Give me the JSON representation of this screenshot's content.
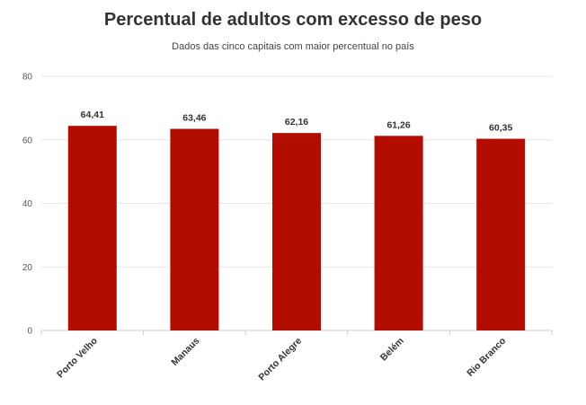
{
  "chart_data": {
    "type": "bar",
    "title": "Percentual de adultos com excesso de peso",
    "subtitle": "Dados das cinco capitais com maior percentual no país",
    "categories": [
      "Porto Velho",
      "Manaus",
      "Porto Alegre",
      "Belém",
      "Rio Branco"
    ],
    "values": [
      64.41,
      63.46,
      62.16,
      61.26,
      60.35
    ],
    "value_labels": [
      "64,41",
      "63,46",
      "62,16",
      "61,26",
      "60,35"
    ],
    "ylim": [
      0,
      80
    ],
    "yticks": [
      "0",
      "20",
      "40",
      "60",
      "80"
    ],
    "ytick_values": [
      0,
      20,
      40,
      60,
      80
    ],
    "xlabel": "",
    "ylabel": "",
    "grid": true,
    "bar_color": "#b30d02",
    "grid_color": "#e6e6e6"
  }
}
